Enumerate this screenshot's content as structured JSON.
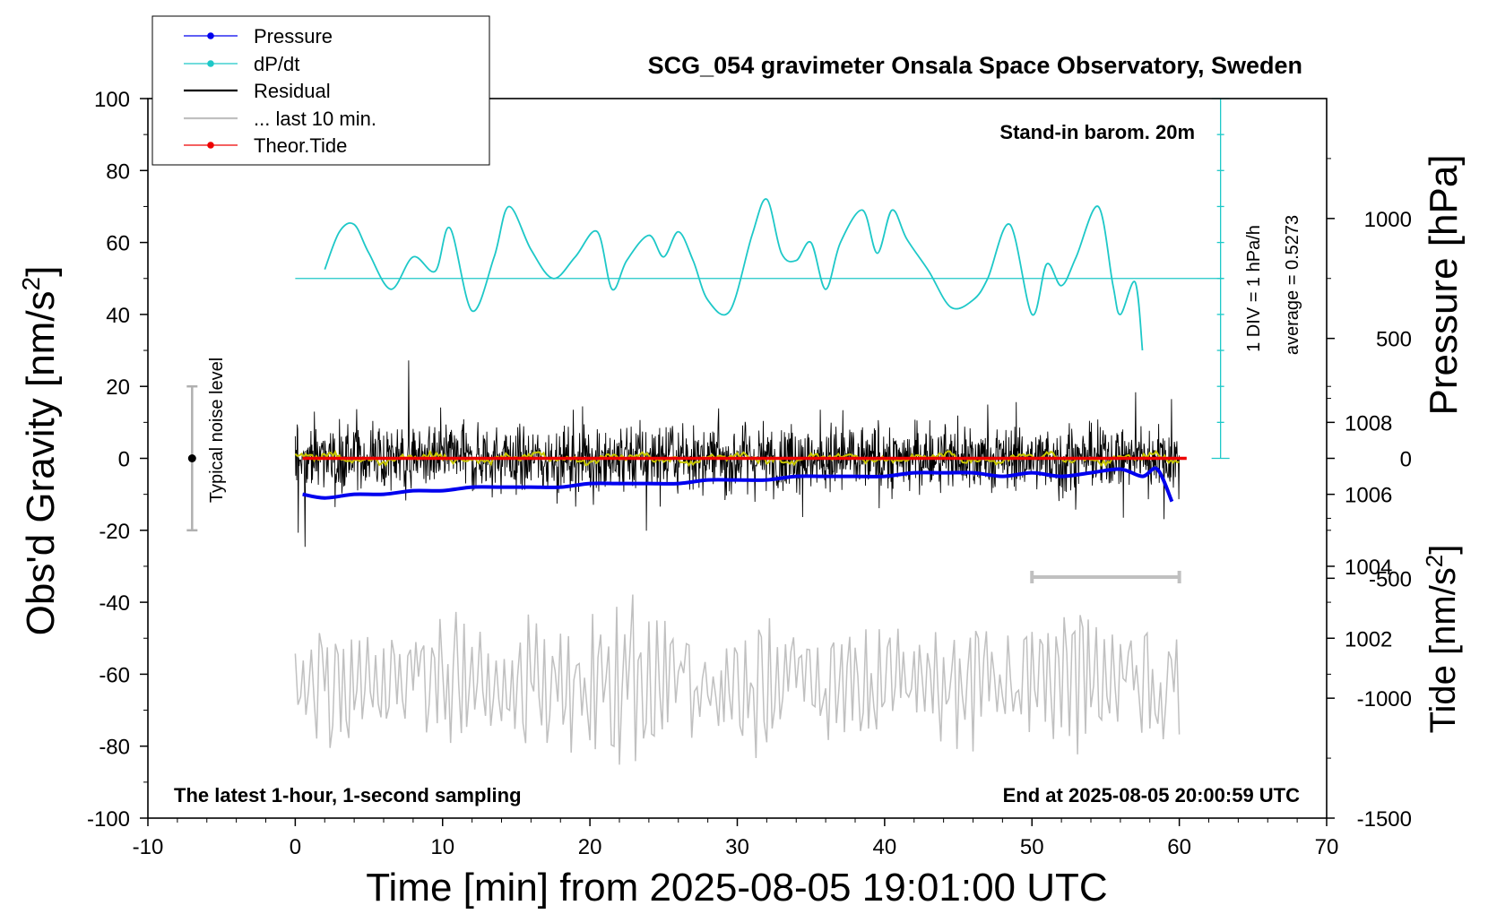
{
  "chart_data": {
    "type": "line",
    "title": "SCG_054 gravimeter Onsala Space Observatory, Sweden",
    "xlabel": "Time [min] from 2025-08-05 19:01:00 UTC",
    "ylabel_left_base": "Obs'd Gravity [nm/s",
    "ylabel_left_sup": "2",
    "ylabel_left_end": "]",
    "ylabel_right_pressure": "Pressure [hPa]",
    "ylabel_right_tide_base": "Tide [nm/s",
    "ylabel_right_tide_sup": "2",
    "ylabel_right_tide_end": "]",
    "xlim": [
      -10,
      70
    ],
    "ylim": [
      -100,
      100
    ],
    "pressure_lim": [
      997,
      1017
    ],
    "tide_lim": [
      -1500,
      1500
    ],
    "x_ticks": [
      "-10",
      "0",
      "10",
      "20",
      "30",
      "40",
      "50",
      "60",
      "70"
    ],
    "y_ticks": [
      "100",
      "80",
      "60",
      "40",
      "20",
      "0",
      "-20",
      "-40",
      "-60",
      "-80",
      "-100"
    ],
    "pressure_ticks": [
      "1008",
      "1006",
      "1004",
      "1002"
    ],
    "tide_ticks": [
      "1000",
      "500",
      "0",
      "-500",
      "-1000",
      "-1500"
    ],
    "legend": {
      "pressure": "Pressure",
      "dpdt": "dP/dt",
      "residual": "Residual",
      "last10": "... last 10 min.",
      "tide": "Theor.Tide"
    },
    "annotations": {
      "barometer": "Stand-in barom. 20m",
      "scale_div": "1 DIV = 1 hPa/h",
      "average": "average = 0.5273",
      "noise": "Typical noise level",
      "latest": "The latest 1-hour, 1-second sampling",
      "end": "End at 2025-08-05 20:00:59 UTC"
    },
    "noise_level_range": [
      -20,
      20
    ],
    "dpdt_baseline_gravity": 50,
    "last10_bar_range_min": [
      50,
      60
    ],
    "series": [
      {
        "name": "Pressure",
        "color": "#0000ee",
        "unit": "hPa",
        "x": [
          0.5,
          2,
          4,
          6,
          8,
          10,
          12,
          14,
          16,
          18,
          20,
          22,
          24,
          26,
          28,
          30,
          32,
          34,
          36,
          38,
          40,
          42,
          44,
          46,
          48,
          50,
          52,
          54,
          56,
          57.5,
          58.5,
          59.5
        ],
        "values": [
          1006.0,
          1005.9,
          1006.0,
          1006.0,
          1006.1,
          1006.1,
          1006.2,
          1006.2,
          1006.2,
          1006.2,
          1006.3,
          1006.3,
          1006.3,
          1006.3,
          1006.4,
          1006.4,
          1006.4,
          1006.5,
          1006.5,
          1006.5,
          1006.5,
          1006.6,
          1006.6,
          1006.6,
          1006.5,
          1006.6,
          1006.5,
          1006.6,
          1006.7,
          1006.5,
          1006.7,
          1005.8
        ]
      },
      {
        "name": "dP/dt",
        "color": "#1ec8c8",
        "unit": "hPa/h (gravity-axis scaled)",
        "x": [
          2,
          3,
          4,
          5,
          6.5,
          8,
          9.5,
          10.5,
          12,
          13.5,
          14.5,
          16,
          17.5,
          19,
          20.5,
          21.5,
          22.5,
          24,
          25,
          26,
          27,
          28,
          29.5,
          31,
          32,
          33,
          34,
          35,
          36,
          37,
          38.5,
          39.5,
          40.5,
          41.5,
          43,
          44.5,
          46,
          47,
          48.5,
          50,
          51,
          52,
          53,
          54.5,
          55.5,
          56,
          57,
          57.5
        ],
        "values": [
          52.5,
          63,
          65,
          57,
          47,
          56,
          52,
          64,
          41,
          56,
          70,
          58,
          50,
          56,
          63,
          47,
          55,
          62,
          56,
          63,
          55,
          44,
          41,
          62,
          72,
          57,
          55,
          60,
          47,
          60,
          69,
          57,
          69,
          61,
          52,
          42,
          44,
          50,
          65,
          40,
          54,
          48,
          56,
          70,
          48,
          40,
          49,
          30
        ]
      },
      {
        "name": "Residual",
        "color": "#000000",
        "unit": "nm/s2",
        "amplitude_typical": 12,
        "amplitude_max": 30
      },
      {
        "name": "... last 10 min.",
        "color": "#c0c0c0",
        "unit": "nm/s2",
        "center": -62,
        "amplitude_typical": 18
      },
      {
        "name": "Theor.Tide",
        "color": "#ee0000",
        "unit": "nm/s2",
        "x": [
          0.5,
          60.5
        ],
        "values": [
          0,
          0
        ]
      }
    ]
  }
}
